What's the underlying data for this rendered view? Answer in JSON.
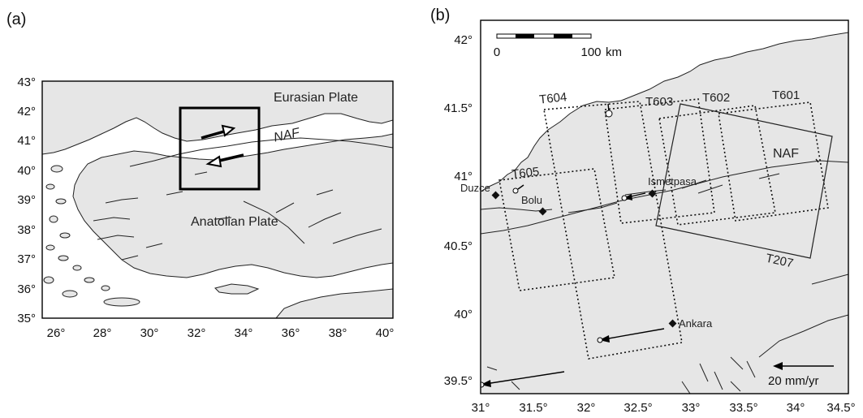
{
  "panel_a": {
    "label": "(a)",
    "lon_ticks": [
      "26°",
      "28°",
      "30°",
      "32°",
      "34°",
      "36°",
      "38°",
      "40°"
    ],
    "lat_ticks": [
      "35°",
      "36°",
      "37°",
      "38°",
      "39°",
      "40°",
      "41°",
      "42°",
      "43°"
    ],
    "labels": {
      "eurasian": "Eurasian Plate",
      "anatolian": "Anatolian Plate",
      "naf": "NAF"
    }
  },
  "panel_b": {
    "label": "(b)",
    "lon_ticks": [
      "31°",
      "31.5°",
      "32°",
      "32.5°",
      "33°",
      "33.5°",
      "34°",
      "34.5°"
    ],
    "lat_ticks": [
      "39.5°",
      "40°",
      "40.5°",
      "41°",
      "41.5°",
      "42°"
    ],
    "scale_bar": {
      "start": "0",
      "end": "100",
      "unit": "km"
    },
    "velocity_legend": "20 mm/yr",
    "naf_label": "NAF",
    "tracks": [
      {
        "name": "T601"
      },
      {
        "name": "T602"
      },
      {
        "name": "T603"
      },
      {
        "name": "T604"
      },
      {
        "name": "T605"
      },
      {
        "name": "T207"
      }
    ],
    "cities": [
      {
        "name": "Duzce"
      },
      {
        "name": "Bolu"
      },
      {
        "name": "Ismetpasa"
      },
      {
        "name": "Ankara"
      }
    ]
  }
}
